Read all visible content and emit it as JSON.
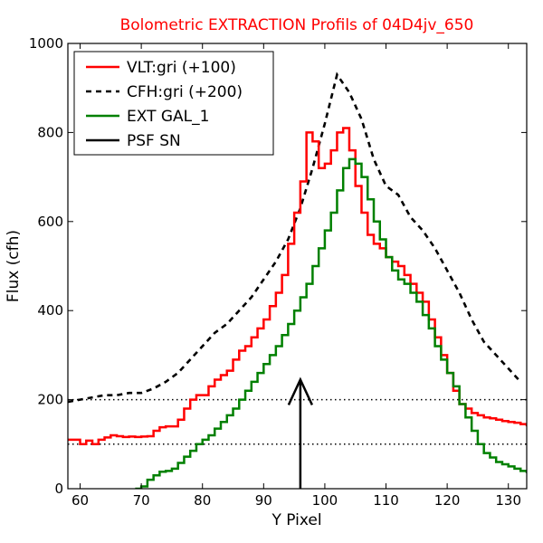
{
  "chart_data": {
    "type": "line",
    "title": "Bolometric EXTRACTION Profils of 04D4jv_650",
    "title_color": "#ff0000",
    "xlabel": "Y Pixel",
    "ylabel": "Flux (cfh)",
    "xlim": [
      58,
      133
    ],
    "ylim": [
      0,
      1000
    ],
    "xticks": [
      60,
      70,
      80,
      90,
      100,
      110,
      120,
      130
    ],
    "yticks": [
      0,
      200,
      400,
      600,
      800,
      1000
    ],
    "grid": false,
    "legend_position": "top-left",
    "series": [
      {
        "name": "VLT:gri (+100)",
        "color": "#ff0000",
        "style": "steps-solid",
        "x": [
          58,
          59,
          60,
          61,
          62,
          63,
          64,
          65,
          66,
          67,
          68,
          69,
          70,
          71,
          72,
          73,
          74,
          75,
          76,
          77,
          78,
          79,
          80,
          81,
          82,
          83,
          84,
          85,
          86,
          87,
          88,
          89,
          90,
          91,
          92,
          93,
          94,
          95,
          96,
          97,
          98,
          99,
          100,
          101,
          102,
          103,
          104,
          105,
          106,
          107,
          108,
          109,
          110,
          111,
          112,
          113,
          114,
          115,
          116,
          117,
          118,
          119,
          120,
          121,
          122,
          123,
          124,
          125,
          126,
          127,
          128,
          129,
          130,
          131,
          132,
          133
        ],
        "y": [
          110,
          110,
          100,
          108,
          100,
          110,
          115,
          120,
          118,
          116,
          117,
          116,
          117,
          118,
          130,
          138,
          140,
          140,
          155,
          180,
          200,
          210,
          210,
          230,
          245,
          255,
          265,
          290,
          310,
          320,
          340,
          360,
          380,
          410,
          440,
          480,
          550,
          620,
          690,
          800,
          780,
          720,
          730,
          760,
          800,
          810,
          760,
          680,
          620,
          570,
          550,
          540,
          520,
          510,
          500,
          480,
          460,
          440,
          420,
          380,
          340,
          300,
          260,
          220,
          190,
          180,
          170,
          165,
          160,
          158,
          155,
          152,
          150,
          148,
          145,
          140
        ]
      },
      {
        "name": "CFH:gri (+200)",
        "color": "#000000",
        "style": "dashed",
        "x": [
          58,
          60,
          62,
          64,
          66,
          68,
          70,
          72,
          74,
          76,
          78,
          80,
          82,
          84,
          86,
          88,
          90,
          92,
          94,
          96,
          98,
          100,
          102,
          104,
          106,
          108,
          110,
          112,
          114,
          116,
          118,
          120,
          122,
          124,
          126,
          128,
          130,
          132
        ],
        "y": [
          195,
          200,
          205,
          210,
          210,
          215,
          215,
          225,
          240,
          260,
          290,
          320,
          350,
          370,
          400,
          430,
          470,
          510,
          560,
          630,
          720,
          820,
          930,
          890,
          830,
          740,
          680,
          660,
          610,
          580,
          540,
          490,
          440,
          380,
          330,
          300,
          270,
          240
        ]
      },
      {
        "name": "EXT GAL_1",
        "color": "#008000",
        "style": "steps-solid",
        "x": [
          69,
          70,
          71,
          72,
          73,
          74,
          75,
          76,
          77,
          78,
          79,
          80,
          81,
          82,
          83,
          84,
          85,
          86,
          87,
          88,
          89,
          90,
          91,
          92,
          93,
          94,
          95,
          96,
          97,
          98,
          99,
          100,
          101,
          102,
          103,
          104,
          105,
          106,
          107,
          108,
          109,
          110,
          111,
          112,
          113,
          114,
          115,
          116,
          117,
          118,
          119,
          120,
          121,
          122,
          123,
          124,
          125,
          126,
          127,
          128,
          129,
          130,
          131,
          132,
          133
        ],
        "y": [
          0,
          5,
          20,
          30,
          38,
          40,
          45,
          58,
          72,
          85,
          100,
          110,
          120,
          135,
          150,
          165,
          180,
          200,
          220,
          240,
          260,
          280,
          300,
          320,
          345,
          370,
          400,
          430,
          460,
          500,
          540,
          580,
          620,
          670,
          720,
          740,
          730,
          700,
          650,
          600,
          560,
          520,
          490,
          470,
          460,
          440,
          420,
          390,
          360,
          320,
          290,
          260,
          230,
          190,
          160,
          130,
          100,
          80,
          70,
          60,
          55,
          50,
          45,
          40,
          35
        ]
      },
      {
        "name": "PSF SN",
        "color": "#000000",
        "style": "solid",
        "x": [
          96,
          96
        ],
        "y": [
          0,
          245
        ]
      }
    ],
    "annotations": [
      {
        "type": "hline",
        "style": "dotted",
        "y": 200,
        "color": "#000000"
      },
      {
        "type": "hline",
        "style": "dotted",
        "y": 100,
        "color": "#000000"
      },
      {
        "type": "arrowhead",
        "at": [
          96,
          245
        ],
        "color": "#000000"
      }
    ]
  }
}
